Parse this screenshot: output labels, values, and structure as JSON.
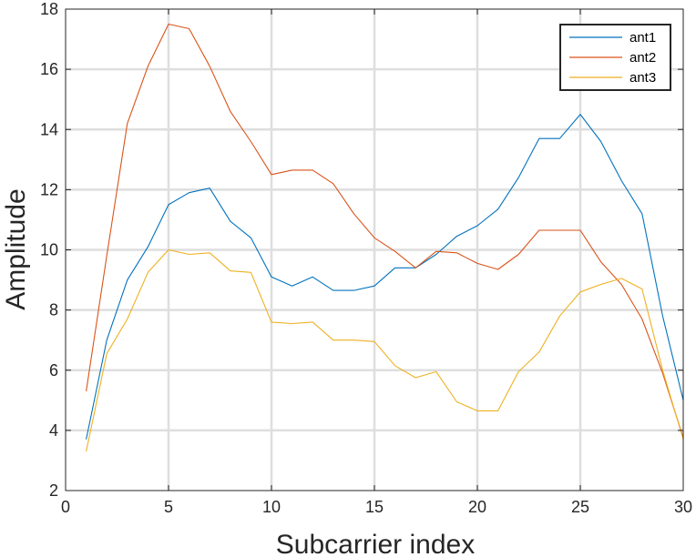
{
  "chart_data": {
    "type": "line",
    "xlabel": "Subcarrier index",
    "ylabel": "Amplitude",
    "xlim": [
      0,
      30
    ],
    "ylim": [
      2,
      18
    ],
    "xticks": [
      0,
      5,
      10,
      15,
      20,
      25,
      30
    ],
    "yticks": [
      2,
      4,
      6,
      8,
      10,
      12,
      14,
      16,
      18
    ],
    "grid": true,
    "legend_position": "top-right",
    "x": [
      1,
      2,
      3,
      4,
      5,
      6,
      7,
      8,
      9,
      10,
      11,
      12,
      13,
      14,
      15,
      16,
      17,
      18,
      19,
      20,
      21,
      22,
      23,
      24,
      25,
      26,
      27,
      28,
      29,
      30
    ],
    "series": [
      {
        "name": "ant1",
        "color": "#0072BD",
        "values": [
          3.7,
          7.0,
          9.0,
          10.1,
          11.5,
          11.9,
          12.05,
          10.95,
          10.4,
          9.1,
          8.8,
          9.1,
          8.65,
          8.65,
          8.8,
          9.4,
          9.4,
          9.85,
          10.45,
          10.8,
          11.35,
          12.4,
          13.7,
          13.7,
          14.5,
          13.6,
          12.3,
          11.2,
          7.8,
          5.0
        ]
      },
      {
        "name": "ant2",
        "color": "#D95319",
        "values": [
          5.3,
          9.8,
          14.2,
          16.1,
          17.5,
          17.35,
          16.1,
          14.6,
          13.6,
          12.5,
          12.65,
          12.65,
          12.2,
          11.2,
          10.4,
          9.95,
          9.4,
          9.95,
          9.9,
          9.55,
          9.35,
          9.85,
          10.65,
          10.65,
          10.65,
          9.6,
          8.85,
          7.7,
          5.9,
          3.75
        ]
      },
      {
        "name": "ant3",
        "color": "#EDB120",
        "values": [
          3.3,
          6.55,
          7.7,
          9.25,
          10.0,
          9.85,
          9.9,
          9.3,
          9.25,
          7.6,
          7.55,
          7.6,
          7.0,
          7.0,
          6.95,
          6.15,
          5.75,
          5.95,
          4.95,
          4.65,
          4.65,
          5.95,
          6.6,
          7.8,
          8.6,
          8.85,
          9.05,
          8.7,
          6.0,
          3.7
        ]
      }
    ]
  }
}
